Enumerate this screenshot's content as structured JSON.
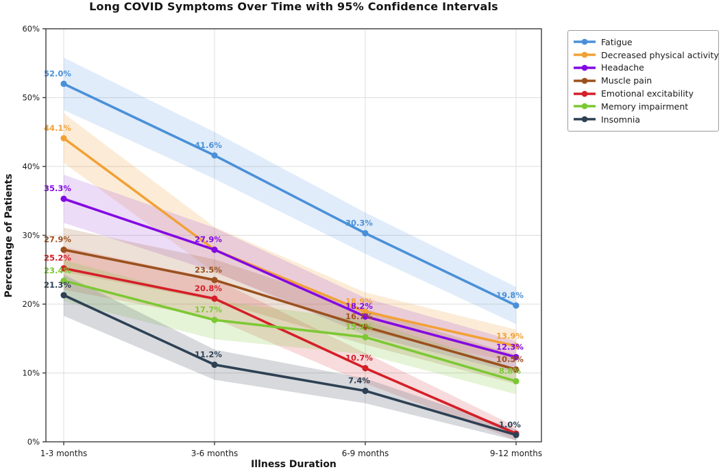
{
  "title": "Long COVID Symptoms Over Time with 95% Confidence Intervals",
  "chart_data": {
    "type": "line",
    "title": "Long COVID Symptoms Over Time with 95% Confidence Intervals",
    "xlabel": "Illness Duration",
    "ylabel": "Percentage of Patients",
    "categories": [
      "1-3 months",
      "3-6 months",
      "6-9 months",
      "9-12 months"
    ],
    "y_ticks": [
      "0%",
      "10%",
      "20%",
      "30%",
      "40%",
      "50%",
      "60%"
    ],
    "ylim": [
      0,
      60
    ],
    "grid": true,
    "confidence_level": "95%",
    "legend_position": "outside-right",
    "series": [
      {
        "name": "Fatigue",
        "color": "#4a90d9",
        "band_color": "rgba(74,144,217,0.17)",
        "values": [
          52.0,
          41.6,
          30.3,
          19.8
        ],
        "labels": [
          "52.0%",
          "41.6%",
          "30.3%",
          "19.8%"
        ],
        "ci": [
          3.8,
          3.4,
          3.0,
          2.7
        ]
      },
      {
        "name": "Decreased physical activity",
        "color": "#f2a136",
        "band_color": "rgba(242,161,54,0.20)",
        "values": [
          44.1,
          27.9,
          18.9,
          13.9
        ],
        "labels": [
          "44.1%",
          "",
          "18.9%",
          "13.9%"
        ],
        "ci": [
          3.6,
          3.3,
          2.8,
          2.4
        ]
      },
      {
        "name": "Headache",
        "color": "#8309e2",
        "band_color": "rgba(160,80,220,0.20)",
        "values": [
          35.3,
          27.9,
          18.2,
          12.3
        ],
        "labels": [
          "35.3%",
          "27.9%",
          "18.2%",
          "12.3%"
        ],
        "ci": [
          3.5,
          3.2,
          2.7,
          2.3
        ]
      },
      {
        "name": "Muscle pain",
        "color": "#9b511e",
        "band_color": "rgba(155,81,30,0.18)",
        "values": [
          27.9,
          23.5,
          16.7,
          10.5
        ],
        "labels": [
          "27.9%",
          "23.5%",
          "16.7%",
          "10.5%"
        ],
        "ci": [
          3.2,
          3.0,
          2.6,
          2.1
        ]
      },
      {
        "name": "Emotional excitability",
        "color": "#d41f28",
        "band_color": "rgba(212,31,40,0.16)",
        "values": [
          25.2,
          20.8,
          10.7,
          1.2
        ],
        "labels": [
          "25.2%",
          "20.8%",
          "10.7%",
          ""
        ],
        "ci": [
          3.1,
          2.9,
          2.2,
          1.0
        ]
      },
      {
        "name": "Memory impairment",
        "color": "#7cc834",
        "band_color": "rgba(124,200,52,0.20)",
        "values": [
          23.4,
          17.7,
          15.2,
          8.8
        ],
        "labels": [
          "23.4%",
          "17.7%",
          "15.2%",
          "8.8%"
        ],
        "ci": [
          3.0,
          2.8,
          2.5,
          1.9
        ]
      },
      {
        "name": "Insomnia",
        "color": "#2e4154",
        "band_color": "rgba(110,120,132,0.28)",
        "values": [
          21.3,
          11.2,
          7.4,
          1.0
        ],
        "labels": [
          "21.3%",
          "11.2%",
          "7.4%",
          "1.0%"
        ],
        "ci": [
          3.0,
          2.2,
          1.8,
          0.8
        ]
      }
    ]
  }
}
